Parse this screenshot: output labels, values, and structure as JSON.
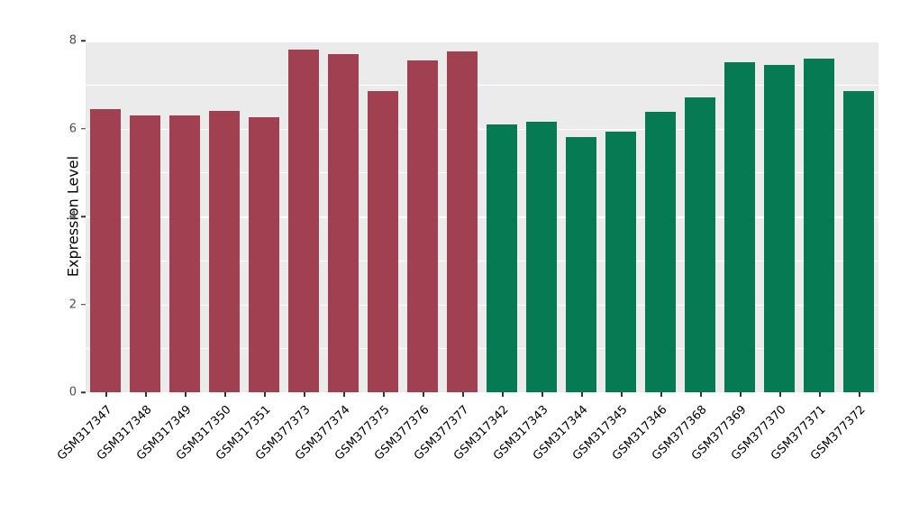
{
  "chart_data": {
    "type": "bar",
    "title": "",
    "xlabel": "",
    "ylabel": "Expression Level",
    "ylim": [
      0,
      8
    ],
    "yticks": [
      0,
      2,
      4,
      6,
      8
    ],
    "yticks_minor": [
      1,
      3,
      5,
      7
    ],
    "grid": true,
    "legend": "none",
    "plot_background": "#EBEBEB",
    "gridline_color": "#ffffff",
    "categories": [
      "GSM317347",
      "GSM317348",
      "GSM317349",
      "GSM317350",
      "GSM317351",
      "GSM377373",
      "GSM377374",
      "GSM377375",
      "GSM377376",
      "GSM377377",
      "GSM317342",
      "GSM317343",
      "GSM317344",
      "GSM317345",
      "GSM317346",
      "GSM377368",
      "GSM377369",
      "GSM377370",
      "GSM377371",
      "GSM377372"
    ],
    "values": [
      6.45,
      6.3,
      6.3,
      6.4,
      6.25,
      7.8,
      7.7,
      6.85,
      7.55,
      7.75,
      6.1,
      6.15,
      5.8,
      5.93,
      6.38,
      6.7,
      7.5,
      7.45,
      7.6,
      6.85
    ],
    "bar_colors": [
      "#A04050",
      "#A04050",
      "#A04050",
      "#A04050",
      "#A04050",
      "#A04050",
      "#A04050",
      "#A04050",
      "#A04050",
      "#A04050",
      "#067A53",
      "#067A53",
      "#067A53",
      "#067A53",
      "#067A53",
      "#067A53",
      "#067A53",
      "#067A53",
      "#067A53",
      "#067A53"
    ],
    "group_colors": {
      "maroon_group": "#A04050",
      "green_group": "#067A53"
    }
  }
}
